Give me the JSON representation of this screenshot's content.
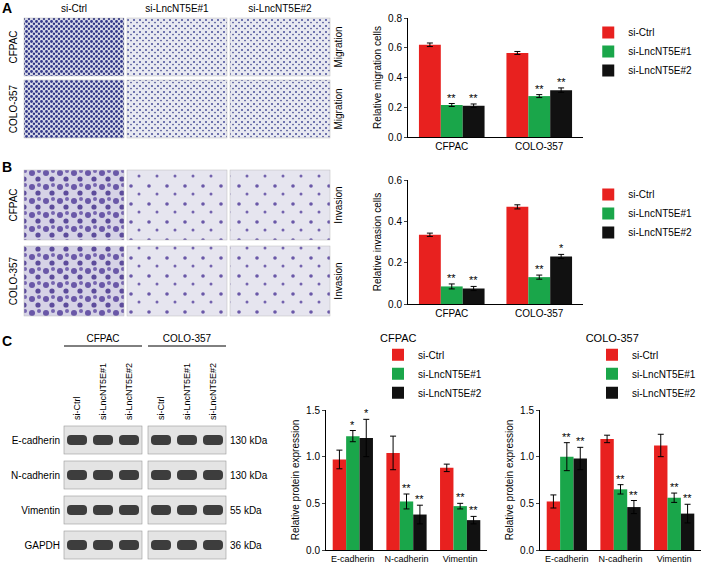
{
  "panels": [
    {
      "label": "A",
      "columns": [
        "si-Ctrl",
        "si-LncNT5E#1",
        "si-LncNT5E#2"
      ],
      "rows": [
        "CFPAC",
        "COLO-357"
      ],
      "side": "Migration"
    },
    {
      "label": "B",
      "rows": [
        "CFPAC",
        "COLO-357"
      ],
      "side": "Invasion"
    }
  ],
  "blot": {
    "label": "C",
    "groups": [
      "CFPAC",
      "COLO-357"
    ],
    "lanes": [
      "si-Ctrl",
      "si-LncNT5E#1",
      "si-LncNT5E#2"
    ],
    "proteins": [
      "E-cadherin",
      "N-cadherin",
      "Vimentin",
      "GAPDH"
    ],
    "sizes": [
      "130 kDa",
      "130 kDa",
      "55 kDa",
      "36 kDa"
    ]
  },
  "chart_data": [
    {
      "type": "bar",
      "ylabel": "Relative migration cells",
      "categories": [
        "CFPAC",
        "COLO-357"
      ],
      "series": [
        {
          "name": "si-Ctrl",
          "color": "#e8211f",
          "values": [
            0.62,
            0.565
          ],
          "errors": [
            0.012,
            0.01
          ],
          "significance": [
            null,
            null
          ]
        },
        {
          "name": "si-LncNT5E#1",
          "color": "#1aa64a",
          "values": [
            0.215,
            0.275
          ],
          "errors": [
            0.01,
            0.01
          ],
          "significance": [
            "**",
            "**"
          ]
        },
        {
          "name": "si-LncNT5E#2",
          "color": "#111111",
          "values": [
            0.21,
            0.315
          ],
          "errors": [
            0.012,
            0.015
          ],
          "significance": [
            "**",
            "**"
          ]
        }
      ],
      "ylim": [
        0,
        0.8
      ],
      "yticks": [
        {
          "value": 0,
          "label": "0.0"
        },
        0.2,
        0.4,
        0.6,
        0.8
      ],
      "legend": "right",
      "grid": false
    },
    {
      "type": "bar",
      "ylabel": "Relative invasion cells",
      "categories": [
        "CFPAC",
        "COLO-357"
      ],
      "series": [
        {
          "name": "si-Ctrl",
          "color": "#e8211f",
          "values": [
            0.335,
            0.47
          ],
          "errors": [
            0.008,
            0.01
          ],
          "significance": [
            null,
            null
          ]
        },
        {
          "name": "si-LncNT5E#1",
          "color": "#1aa64a",
          "values": [
            0.085,
            0.13
          ],
          "errors": [
            0.012,
            0.01
          ],
          "significance": [
            "**",
            "**"
          ]
        },
        {
          "name": "si-LncNT5E#2",
          "color": "#111111",
          "values": [
            0.075,
            0.23
          ],
          "errors": [
            0.01,
            0.01
          ],
          "significance": [
            "**",
            "*"
          ]
        }
      ],
      "ylim": [
        0,
        0.6
      ],
      "yticks": [
        {
          "value": 0,
          "label": "0.0"
        },
        0.2,
        0.4,
        0.6
      ],
      "legend": "right",
      "grid": false
    },
    {
      "type": "bar",
      "title": "CFPAC",
      "ylabel": "Relative protein expression",
      "categories": [
        "E-cadherin",
        "N-cadherin",
        "Vimentin"
      ],
      "series": [
        {
          "name": "si-Ctrl",
          "color": "#e8211f",
          "values": [
            0.97,
            1.04,
            0.88
          ],
          "errors": [
            0.1,
            0.18,
            0.04
          ],
          "significance": [
            null,
            null,
            null
          ]
        },
        {
          "name": "si-LncNT5E#1",
          "color": "#1aa64a",
          "values": [
            1.22,
            0.52,
            0.47
          ],
          "errors": [
            0.06,
            0.08,
            0.03
          ],
          "significance": [
            "*",
            "**",
            "**"
          ]
        },
        {
          "name": "si-LncNT5E#2",
          "color": "#111111",
          "values": [
            1.2,
            0.38,
            0.32
          ],
          "errors": [
            0.2,
            0.1,
            0.04
          ],
          "significance": [
            "*",
            "**",
            "**"
          ]
        }
      ],
      "ylim": [
        0,
        1.5
      ],
      "yticks": [
        {
          "value": 0,
          "label": "0.0"
        },
        0.5,
        {
          "value": 1,
          "label": "1.0"
        },
        1.5
      ],
      "legend": "top right",
      "grid": false
    },
    {
      "type": "bar",
      "title": "COLO-357",
      "ylabel": "Relative protein expression",
      "categories": [
        "E-cadherin",
        "N-cadherin",
        "Vimentin"
      ],
      "series": [
        {
          "name": "si-Ctrl",
          "color": "#e8211f",
          "values": [
            0.52,
            1.19,
            1.12
          ],
          "errors": [
            0.07,
            0.04,
            0.12
          ],
          "significance": [
            null,
            null,
            null
          ]
        },
        {
          "name": "si-LncNT5E#1",
          "color": "#1aa64a",
          "values": [
            1.0,
            0.65,
            0.56
          ],
          "errors": [
            0.15,
            0.05,
            0.05
          ],
          "significance": [
            "**",
            "**",
            "**"
          ]
        },
        {
          "name": "si-LncNT5E#2",
          "color": "#111111",
          "values": [
            0.98,
            0.46,
            0.39
          ],
          "errors": [
            0.12,
            0.07,
            0.1
          ],
          "significance": [
            "**",
            "**",
            "**"
          ]
        }
      ],
      "ylim": [
        0,
        1.5
      ],
      "yticks": [
        {
          "value": 0,
          "label": "0.0"
        },
        0.5,
        {
          "value": 1,
          "label": "1.0"
        },
        1.5
      ],
      "legend": "top right",
      "grid": false
    }
  ]
}
